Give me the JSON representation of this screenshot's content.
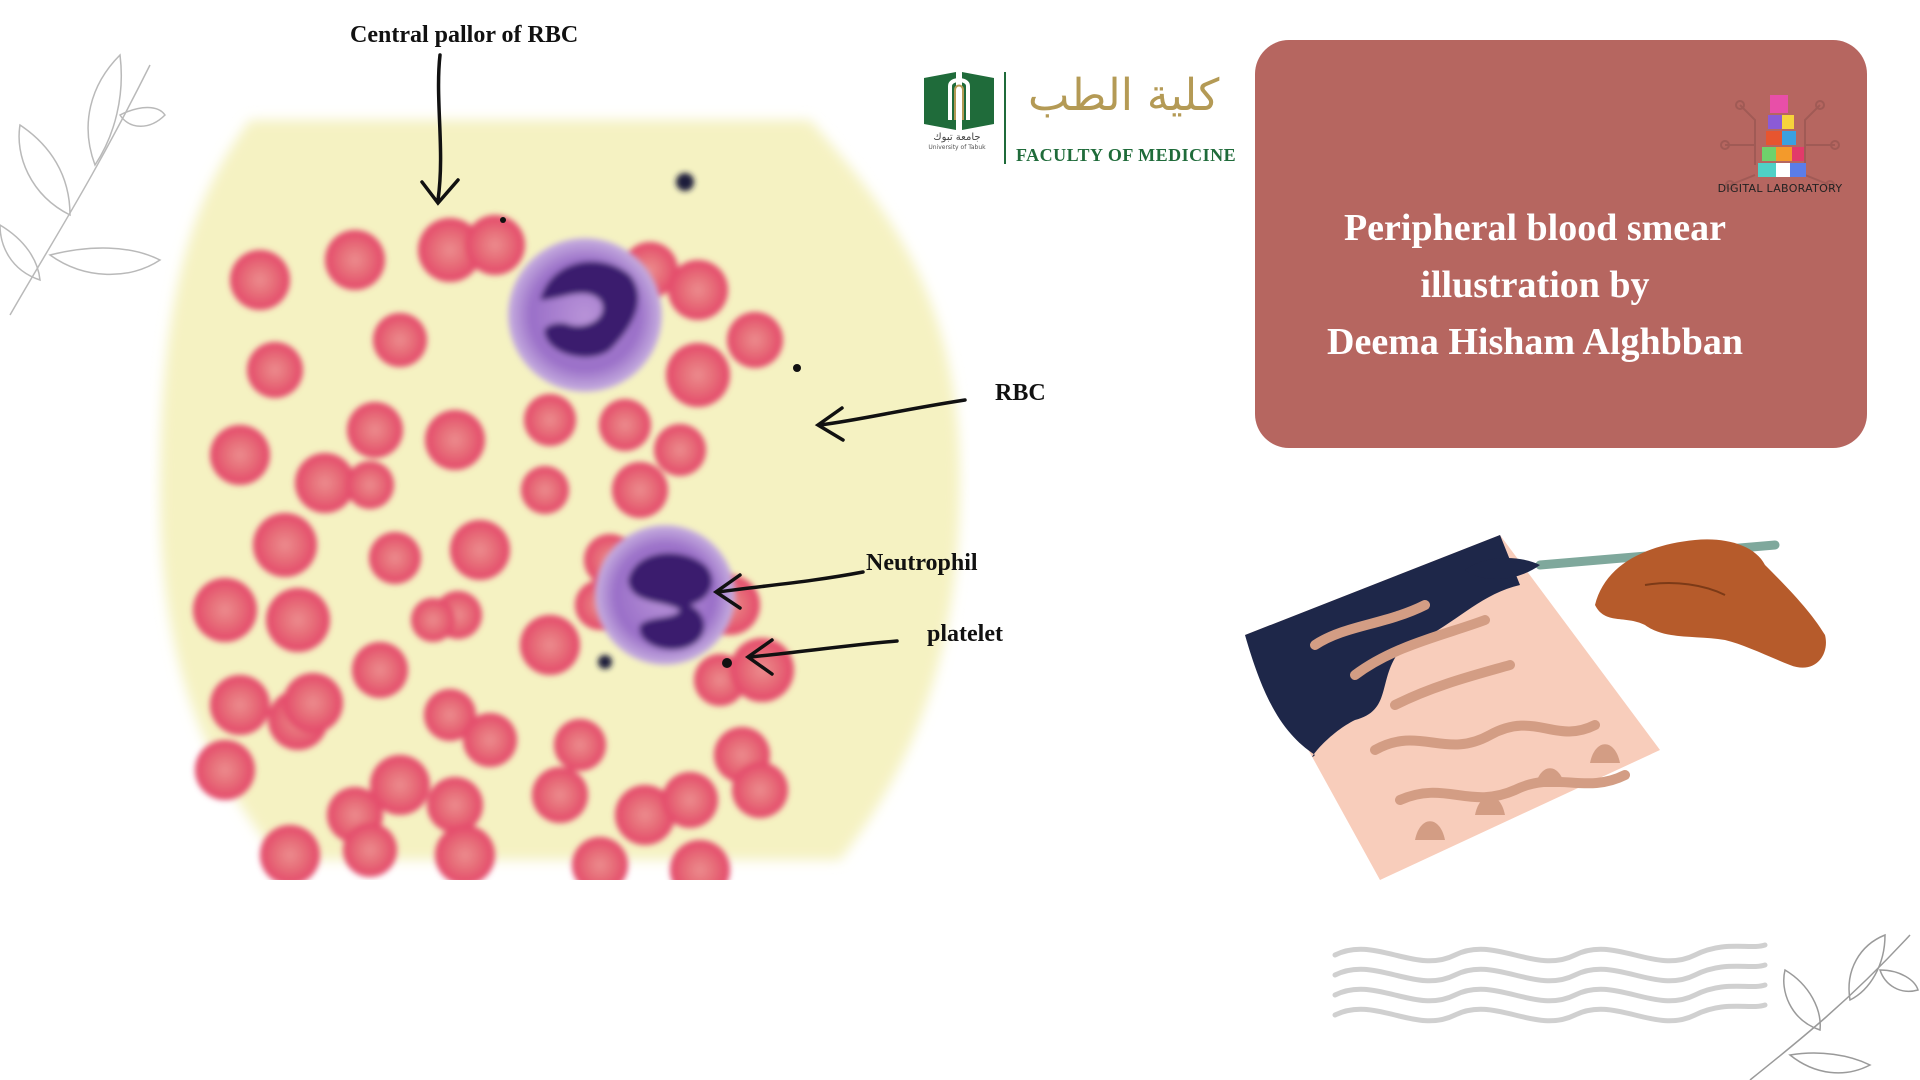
{
  "labels": {
    "central_pallor": "Central pallor of RBC",
    "rbc": "RBC",
    "neutrophil": "Neutrophil",
    "platelet": "platelet"
  },
  "title": {
    "line1": "Peripheral blood smear",
    "line2": "illustration by",
    "line3": "Deema Hisham Alghbban"
  },
  "university": {
    "faculty": "FACULTY OF MEDICINE",
    "arabic": "كلية الطب",
    "arabic_small": "جامعة تبوك",
    "english_small": "University of Tabuk"
  },
  "digital_lab": {
    "name": "DIGITAL LABORATORY"
  },
  "colors": {
    "smear_background": "#f5f2c2",
    "rbc": "#e45a72",
    "neutrophil_cytoplasm": "#9a6fc8",
    "neutrophil_nucleus": "#3a1f6e",
    "title_card": "#b66660",
    "faculty_green": "#1f6b3a",
    "arabic_gold": "#b49a55"
  },
  "icons": [
    "leaf-branch-icon",
    "hand-painting-icon",
    "wavy-lines-icon",
    "digital-laboratory-logo",
    "university-of-tabuk-logo"
  ]
}
